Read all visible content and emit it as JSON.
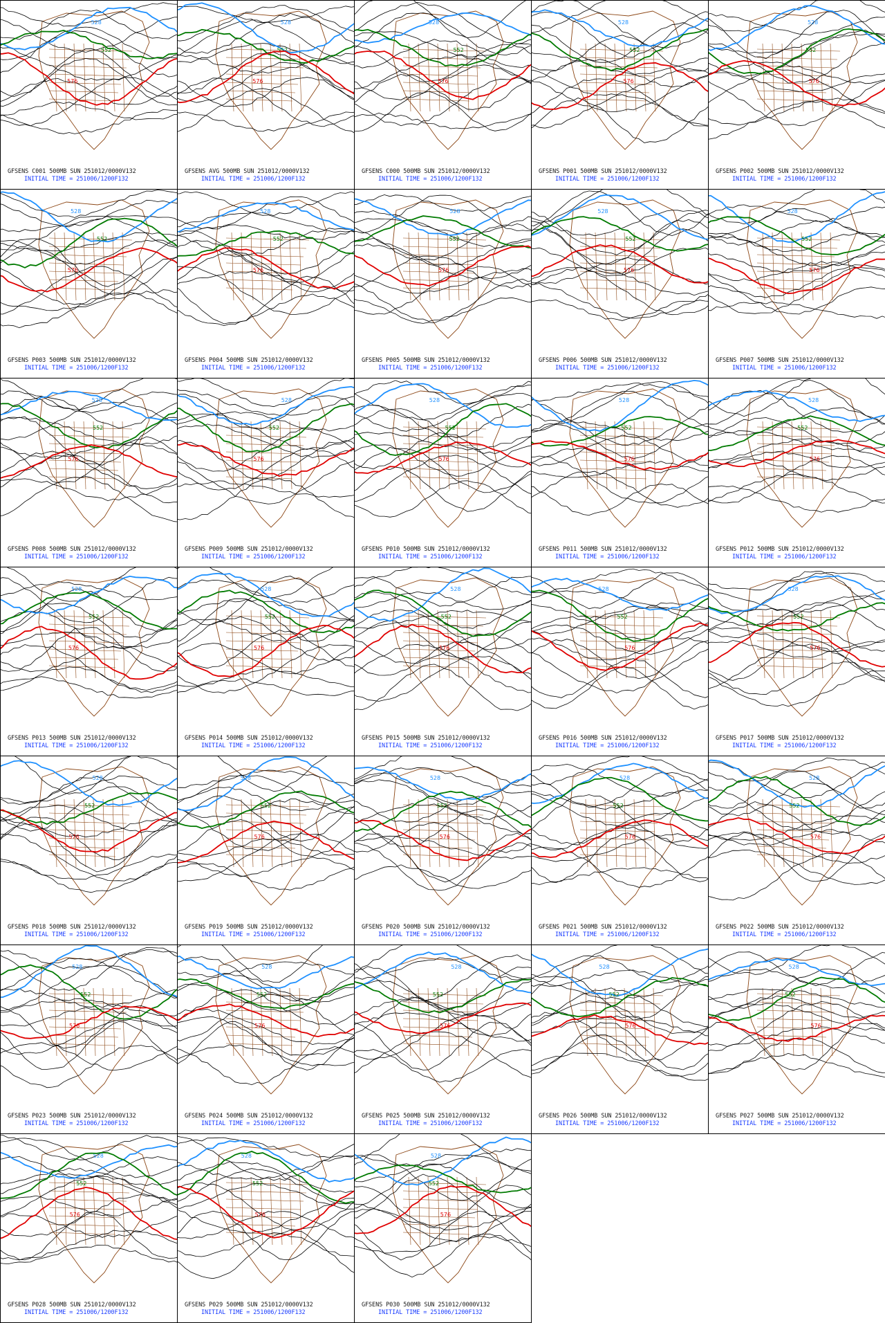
{
  "colors": {
    "height_contour": "#000000",
    "contour_528": "#1e90ff",
    "contour_552": "#007a00",
    "contour_576": "#e00000",
    "geography": "#8b4513",
    "caption_header": "#1a1a1a",
    "caption_time": "#1a3cff"
  },
  "contour_labels": {
    "blue": "528",
    "green": "552",
    "red": "576"
  },
  "initial_time": "INITIAL TIME = 251006/1200F132",
  "panels": [
    {
      "header": "GFSENS C001 500MB SUN 251012/0000V132"
    },
    {
      "header": "GFSENS AVG 500MB SUN 251012/0000V132"
    },
    {
      "header": "GFSENS C000 500MB SUN 251012/0000V132"
    },
    {
      "header": "GFSENS P001 500MB SUN 251012/0000V132"
    },
    {
      "header": "GFSENS P002 500MB SUN 251012/0000V132"
    },
    {
      "header": "GFSENS P003 500MB SUN 251012/0000V132"
    },
    {
      "header": "GFSENS P004 500MB SUN 251012/0000V132"
    },
    {
      "header": "GFSENS P005 500MB SUN 251012/0000V132"
    },
    {
      "header": "GFSENS P006 500MB SUN 251012/0000V132"
    },
    {
      "header": "GFSENS P007 500MB SUN 251012/0000V132"
    },
    {
      "header": "GFSENS P008 500MB SUN 251012/0000V132"
    },
    {
      "header": "GFSENS P009 500MB SUN 251012/0000V132"
    },
    {
      "header": "GFSENS P010 500MB SUN 251012/0000V132"
    },
    {
      "header": "GFSENS P011 500MB SUN 251012/0000V132"
    },
    {
      "header": "GFSENS P012 500MB SUN 251012/0000V132"
    },
    {
      "header": "GFSENS P013 500MB SUN 251012/0000V132"
    },
    {
      "header": "GFSENS P014 500MB SUN 251012/0000V132"
    },
    {
      "header": "GFSENS P015 500MB SUN 251012/0000V132"
    },
    {
      "header": "GFSENS P016 500MB SUN 251012/0000V132"
    },
    {
      "header": "GFSENS P017 500MB SUN 251012/0000V132"
    },
    {
      "header": "GFSENS P018 500MB SUN 251012/0000V132"
    },
    {
      "header": "GFSENS P019 500MB SUN 251012/0000V132"
    },
    {
      "header": "GFSENS P020 500MB SUN 251012/0000V132"
    },
    {
      "header": "GFSENS P021 500MB SUN 251012/0000V132"
    },
    {
      "header": "GFSENS P022 500MB SUN 251012/0000V132"
    },
    {
      "header": "GFSENS P023 500MB SUN 251012/0000V132"
    },
    {
      "header": "GFSENS P024 500MB SUN 251012/0000V132"
    },
    {
      "header": "GFSENS P025 500MB SUN 251012/0000V132"
    },
    {
      "header": "GFSENS P026 500MB SUN 251012/0000V132"
    },
    {
      "header": "GFSENS P027 500MB SUN 251012/0000V132"
    },
    {
      "header": "GFSENS P028 500MB SUN 251012/0000V132"
    },
    {
      "header": "GFSENS P029 500MB SUN 251012/0000V132"
    },
    {
      "header": "GFSENS P030 500MB SUN 251012/0000V132"
    }
  ]
}
